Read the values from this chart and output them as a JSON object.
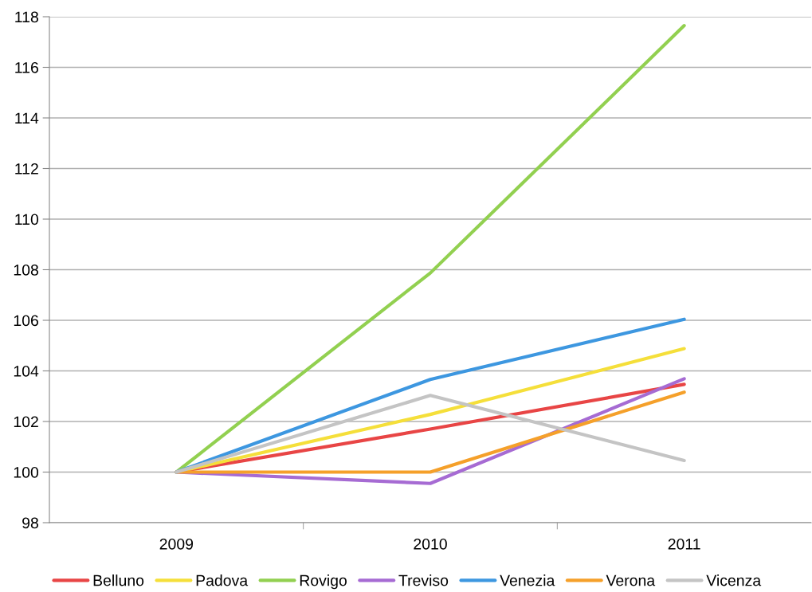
{
  "chart_data": {
    "type": "line",
    "categories": [
      "2009",
      "2010",
      "2011"
    ],
    "series": [
      {
        "name": "Belluno",
        "color": "#e84545",
        "values": [
          100,
          101.7,
          103.47
        ]
      },
      {
        "name": "Padova",
        "color": "#f5df3a",
        "values": [
          100,
          102.28,
          104.88
        ]
      },
      {
        "name": "Rovigo",
        "color": "#92d050",
        "values": [
          100,
          107.87,
          117.65
        ]
      },
      {
        "name": "Treviso",
        "color": "#a66bd3",
        "values": [
          100,
          99.55,
          103.69
        ]
      },
      {
        "name": "Venezia",
        "color": "#3d97e0",
        "values": [
          100,
          103.66,
          106.04
        ]
      },
      {
        "name": "Verona",
        "color": "#f5a02a",
        "values": [
          100,
          100,
          103.16
        ]
      },
      {
        "name": "Vicenza",
        "color": "#c4c4c4",
        "values": [
          100,
          103.03,
          100.46
        ]
      }
    ],
    "ylim": [
      98,
      118
    ],
    "yticks": [
      98,
      100,
      102,
      104,
      106,
      108,
      110,
      112,
      114,
      116,
      118
    ],
    "grid": "y",
    "legend": "bottom",
    "marker": "none",
    "line_style": "solid"
  }
}
